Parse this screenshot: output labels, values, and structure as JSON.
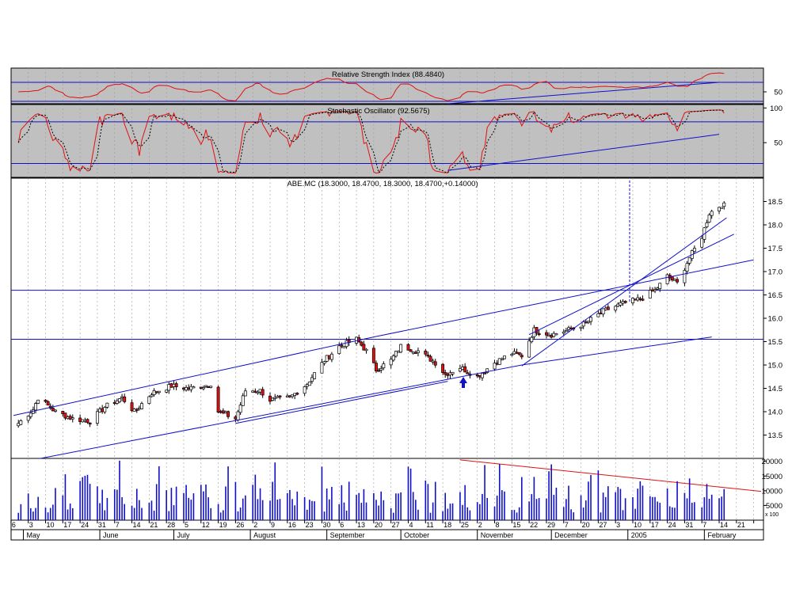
{
  "colors": {
    "panel_bg": "#c0c0c0",
    "main_bg": "#ffffff",
    "line_red": "#e01010",
    "line_blue": "#1010c8",
    "candle_up": "#ffffff",
    "candle_down": "#e01010",
    "volume_bar": "#1010c8",
    "grid": "#9a9a9a"
  },
  "rsi": {
    "title": "Relative Strength Index (88.4840)",
    "ticks": [
      "50"
    ],
    "tick_values": [
      50
    ],
    "range": [
      25,
      100
    ],
    "levels": [
      30,
      70
    ]
  },
  "stochastic": {
    "title": "Stochastic Oscillator (92.5675)",
    "ticks": [
      "100",
      "50"
    ],
    "tick_values": [
      100,
      50
    ],
    "range": [
      0,
      105
    ],
    "levels": [
      20,
      80
    ]
  },
  "price": {
    "title": "ABE.MC (18.3000, 18.4700, 18.3000, 18.4700,+0.14000)",
    "ticks": [
      "18.5",
      "18.0",
      "17.5",
      "17.0",
      "16.5",
      "16.0",
      "15.5",
      "15.0",
      "14.5",
      "14.0",
      "13.5"
    ],
    "tick_values": [
      18.5,
      18.0,
      17.5,
      17.0,
      16.5,
      16.0,
      15.5,
      15.0,
      14.5,
      14.0,
      13.5
    ],
    "range": [
      13.0,
      19.0
    ],
    "support_levels": [
      16.6,
      15.55
    ]
  },
  "volume": {
    "ticks": [
      "20000",
      "15000",
      "10000",
      "5000"
    ],
    "tick_values": [
      20000,
      15000,
      10000,
      5000
    ],
    "range": [
      0,
      21000
    ],
    "scale_label": "x 100"
  },
  "x_axis": {
    "day_labels": [
      "6",
      "3",
      "10",
      "17",
      "24",
      "31",
      "7",
      "14",
      "21",
      "28",
      "5",
      "12",
      "19",
      "26",
      "2",
      "9",
      "16",
      "23",
      "30",
      "6",
      "13",
      "20",
      "27",
      "4",
      "11",
      "18",
      "25",
      "2",
      "8",
      "15",
      "22",
      "29",
      "7",
      "20",
      "27",
      "3",
      "10",
      "17",
      "24",
      "31",
      "7",
      "14",
      "21"
    ],
    "month_labels": [
      "May",
      "June",
      "July",
      "August",
      "September",
      "October",
      "November",
      "December",
      "2005",
      "February"
    ]
  },
  "chart_data": {
    "type": "candlestick",
    "title": "ABE.MC (18.3000, 18.4700, 18.3000, 18.4700,+0.14000)",
    "period": "May 2004 - February 2005 (daily)",
    "ylim": [
      13.0,
      19.0
    ],
    "anchors": [
      [
        "2004-04-29",
        13.75
      ],
      [
        "2004-05-05",
        14.05
      ],
      [
        "2004-05-07",
        14.3
      ],
      [
        "2004-05-14",
        14.0
      ],
      [
        "2004-05-21",
        13.85
      ],
      [
        "2004-05-28",
        13.8
      ],
      [
        "2004-06-03",
        14.1
      ],
      [
        "2004-06-10",
        14.3
      ],
      [
        "2004-06-15",
        14.0
      ],
      [
        "2004-06-22",
        14.4
      ],
      [
        "2004-06-30",
        14.55
      ],
      [
        "2004-07-07",
        14.5
      ],
      [
        "2004-07-13",
        14.55
      ],
      [
        "2004-07-16",
        14.6
      ],
      [
        "2004-07-19",
        14.0
      ],
      [
        "2004-07-26",
        13.85
      ],
      [
        "2004-07-30",
        14.45
      ],
      [
        "2004-08-05",
        14.45
      ],
      [
        "2004-08-09",
        14.25
      ],
      [
        "2004-08-17",
        14.3
      ],
      [
        "2004-08-24",
        14.6
      ],
      [
        "2004-08-31",
        15.1
      ],
      [
        "2004-09-06",
        15.4
      ],
      [
        "2004-09-13",
        15.55
      ],
      [
        "2004-09-17",
        15.3
      ],
      [
        "2004-09-21",
        14.9
      ],
      [
        "2004-09-27",
        15.1
      ],
      [
        "2004-10-01",
        15.4
      ],
      [
        "2004-10-08",
        15.3
      ],
      [
        "2004-10-15",
        15.05
      ],
      [
        "2004-10-19",
        14.8
      ],
      [
        "2004-10-25",
        14.95
      ],
      [
        "2004-11-01",
        14.75
      ],
      [
        "2004-11-08",
        15.05
      ],
      [
        "2004-11-15",
        15.25
      ],
      [
        "2004-11-19",
        15.2
      ],
      [
        "2004-11-24",
        15.75
      ],
      [
        "2004-12-01",
        15.65
      ],
      [
        "2004-12-08",
        15.75
      ],
      [
        "2004-12-15",
        15.9
      ],
      [
        "2004-12-22",
        16.15
      ],
      [
        "2004-12-29",
        16.3
      ],
      [
        "2005-01-05",
        16.4
      ],
      [
        "2005-01-12",
        16.6
      ],
      [
        "2005-01-17",
        16.9
      ],
      [
        "2005-01-21",
        16.75
      ],
      [
        "2005-01-26",
        17.3
      ],
      [
        "2005-01-31",
        17.75
      ],
      [
        "2005-02-03",
        18.25
      ],
      [
        "2005-02-09",
        18.47
      ]
    ],
    "rsi_last": 88.484,
    "stochastic_last": 92.5675,
    "volume_unit": "x 100"
  }
}
